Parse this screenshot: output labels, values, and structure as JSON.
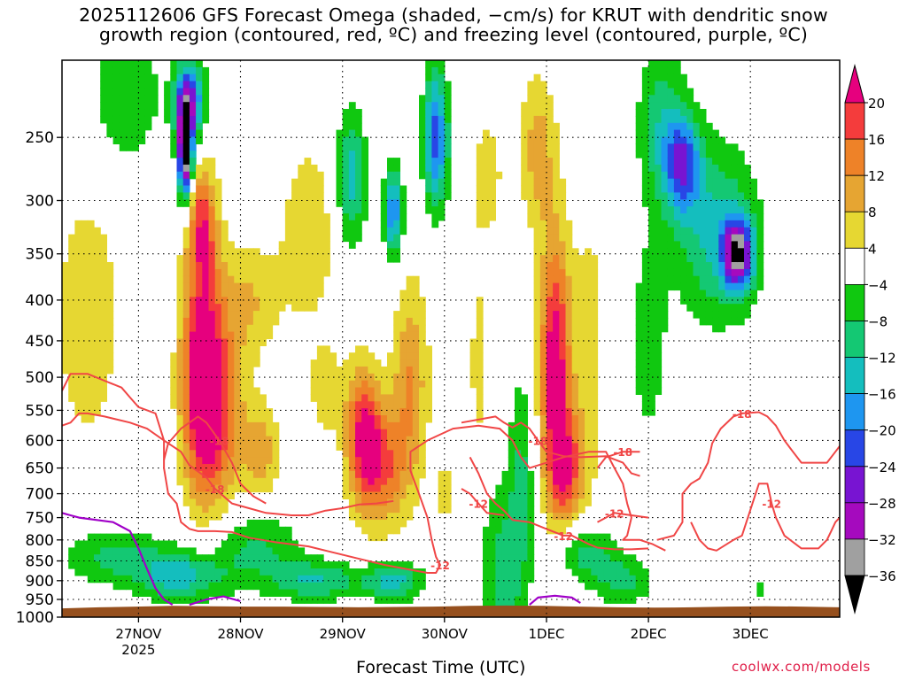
{
  "title": {
    "line1": "2025112606 GFS Forecast Omega (shaded, −cm/s) for KRUT with dendritic snow",
    "line2": "growth region (contoured, red, ºC) and freezing level (contoured, purple, ºC)"
  },
  "xlabel": "Forecast Time (UTC)",
  "credit": "coolwx.com/models",
  "colors": {
    "terrain": "#96501e",
    "dendritic_contour": "#f04646",
    "freezing_contour": "#a000c8",
    "grid": "#000000"
  },
  "chart_data": {
    "type": "heatmap",
    "y_scale": "log-pressure",
    "y_unit": "hPa",
    "ylim": [
      1000,
      200
    ],
    "yticks": [
      250,
      300,
      350,
      400,
      450,
      500,
      550,
      600,
      650,
      700,
      750,
      800,
      850,
      900,
      950,
      1000
    ],
    "x_start": "2025-11-26T06",
    "x_end": "2025-12-03T21",
    "x_unit": "hours",
    "xticks": [
      {
        "t": 18,
        "label": "27NOV",
        "sub": "2025"
      },
      {
        "t": 42,
        "label": "28NOV",
        "sub": ""
      },
      {
        "t": 66,
        "label": "29NOV",
        "sub": ""
      },
      {
        "t": 90,
        "label": "30NOV",
        "sub": ""
      },
      {
        "t": 114,
        "label": "1DEC",
        "sub": ""
      },
      {
        "t": 138,
        "label": "2DEC",
        "sub": ""
      },
      {
        "t": 162,
        "label": "3DEC",
        "sub": ""
      }
    ],
    "grid": true,
    "colorbar": {
      "labels": [
        "20",
        "16",
        "12",
        "8",
        "4",
        "−4",
        "−8",
        "−12",
        "−16",
        "−20",
        "−24",
        "−28",
        "−32",
        "−36"
      ],
      "bins": [
        {
          "lo": 20,
          "hi": 99,
          "color": "#e6007e"
        },
        {
          "lo": 16,
          "hi": 20,
          "color": "#f43c3c"
        },
        {
          "lo": 12,
          "hi": 16,
          "color": "#ee8228"
        },
        {
          "lo": 8,
          "hi": 12,
          "color": "#e6a532"
        },
        {
          "lo": 4,
          "hi": 8,
          "color": "#e6d732"
        },
        {
          "lo": -4,
          "hi": 4,
          "color": "#ffffff"
        },
        {
          "lo": -8,
          "hi": -4,
          "color": "#10c810"
        },
        {
          "lo": -12,
          "hi": -8,
          "color": "#14c873"
        },
        {
          "lo": -16,
          "hi": -12,
          "color": "#14bebe"
        },
        {
          "lo": -20,
          "hi": -16,
          "color": "#1e96f0"
        },
        {
          "lo": -24,
          "hi": -20,
          "color": "#2846e6"
        },
        {
          "lo": -28,
          "hi": -24,
          "color": "#7814d2"
        },
        {
          "lo": -32,
          "hi": -28,
          "color": "#a50abe"
        },
        {
          "lo": -36,
          "hi": -32,
          "color": "#a0a0a0"
        },
        {
          "lo": -99,
          "hi": -36,
          "color": "#000000"
        }
      ]
    },
    "omega_features": [
      {
        "t": 33,
        "p": 500,
        "st": 3.5,
        "sp": 0.24,
        "a": 26
      },
      {
        "t": 33,
        "p": 320,
        "st": 2.5,
        "sp": 0.12,
        "a": 16
      },
      {
        "t": 38,
        "p": 560,
        "st": 4,
        "sp": 0.18,
        "a": 12
      },
      {
        "t": 47,
        "p": 620,
        "st": 3,
        "sp": 0.1,
        "a": 10
      },
      {
        "t": 44,
        "p": 400,
        "st": 5,
        "sp": 0.12,
        "a": 8
      },
      {
        "t": 58,
        "p": 330,
        "st": 5,
        "sp": 0.2,
        "a": 7
      },
      {
        "t": 71,
        "p": 590,
        "st": 3,
        "sp": 0.14,
        "a": 20
      },
      {
        "t": 76,
        "p": 650,
        "st": 4,
        "sp": 0.12,
        "a": 14
      },
      {
        "t": 82,
        "p": 500,
        "st": 3,
        "sp": 0.2,
        "a": 12
      },
      {
        "t": 62,
        "p": 520,
        "st": 3,
        "sp": 0.1,
        "a": 6
      },
      {
        "t": 98,
        "p": 480,
        "st": 1.5,
        "sp": 0.2,
        "a": 6
      },
      {
        "t": 116,
        "p": 480,
        "st": 2.5,
        "sp": 0.26,
        "a": 24
      },
      {
        "t": 119,
        "p": 650,
        "st": 3,
        "sp": 0.12,
        "a": 16
      },
      {
        "t": 112,
        "p": 260,
        "st": 3,
        "sp": 0.16,
        "a": 10
      },
      {
        "t": 124,
        "p": 450,
        "st": 3,
        "sp": 0.3,
        "a": 6
      },
      {
        "t": 6,
        "p": 420,
        "st": 6,
        "sp": 0.28,
        "a": 7
      },
      {
        "t": 100,
        "p": 280,
        "st": 3,
        "sp": 0.15,
        "a": 6
      },
      {
        "t": 168,
        "p": 320,
        "st": 1.5,
        "sp": 0.15,
        "a": 5
      },
      {
        "t": 90,
        "p": 700,
        "st": 2,
        "sp": 0.1,
        "a": 5
      },
      {
        "t": 29,
        "p": 260,
        "st": 1.2,
        "sp": 0.1,
        "a": -40
      },
      {
        "t": 30,
        "p": 225,
        "st": 2.5,
        "sp": 0.08,
        "a": -24
      },
      {
        "t": 68,
        "p": 280,
        "st": 2.5,
        "sp": 0.14,
        "a": -14
      },
      {
        "t": 78,
        "p": 310,
        "st": 1.5,
        "sp": 0.09,
        "a": -20
      },
      {
        "t": 88,
        "p": 250,
        "st": 2,
        "sp": 0.14,
        "a": -22
      },
      {
        "t": 146,
        "p": 270,
        "st": 3,
        "sp": 0.1,
        "a": -20
      },
      {
        "t": 159,
        "p": 350,
        "st": 2.5,
        "sp": 0.07,
        "a": -30
      },
      {
        "t": 154,
        "p": 330,
        "st": 7,
        "sp": 0.18,
        "a": -13
      },
      {
        "t": 141,
        "p": 240,
        "st": 4,
        "sp": 0.16,
        "a": -10
      },
      {
        "t": 15,
        "p": 220,
        "st": 6,
        "sp": 0.15,
        "a": -8
      },
      {
        "t": 12,
        "p": 840,
        "st": 9,
        "sp": 0.06,
        "a": -9
      },
      {
        "t": 28,
        "p": 890,
        "st": 7,
        "sp": 0.05,
        "a": -14
      },
      {
        "t": 45,
        "p": 820,
        "st": 8,
        "sp": 0.08,
        "a": -9
      },
      {
        "t": 60,
        "p": 900,
        "st": 7,
        "sp": 0.04,
        "a": -12
      },
      {
        "t": 78,
        "p": 900,
        "st": 5,
        "sp": 0.04,
        "a": -14
      },
      {
        "t": 104,
        "p": 880,
        "st": 4,
        "sp": 0.18,
        "a": -10
      },
      {
        "t": 108,
        "p": 650,
        "st": 2,
        "sp": 0.2,
        "a": -8
      },
      {
        "t": 123,
        "p": 830,
        "st": 5,
        "sp": 0.06,
        "a": -10
      },
      {
        "t": 132,
        "p": 900,
        "st": 5,
        "sp": 0.05,
        "a": -9
      },
      {
        "t": 138,
        "p": 450,
        "st": 3,
        "sp": 0.2,
        "a": -7
      },
      {
        "t": 164,
        "p": 920,
        "st": 1.5,
        "sp": 0.02,
        "a": -6
      }
    ],
    "dendritic_contours": [
      {
        "label": "-12",
        "points": [
          [
            0,
            520
          ],
          [
            2,
            495
          ],
          [
            6,
            495
          ],
          [
            10,
            505
          ],
          [
            14,
            515
          ],
          [
            16,
            530
          ],
          [
            18,
            545
          ],
          [
            22,
            555
          ],
          [
            24,
            600
          ],
          [
            24,
            650
          ],
          [
            25,
            700
          ],
          [
            27,
            720
          ],
          [
            28,
            760
          ],
          [
            30,
            775
          ],
          [
            32,
            780
          ],
          [
            36,
            780
          ],
          [
            40,
            782
          ],
          [
            44,
            795
          ],
          [
            50,
            805
          ],
          [
            58,
            815
          ],
          [
            64,
            830
          ],
          [
            70,
            845
          ],
          [
            76,
            860
          ],
          [
            82,
            872
          ],
          [
            86,
            880
          ],
          [
            88,
            880
          ],
          [
            89,
            860
          ],
          [
            88,
            840
          ],
          [
            87,
            800
          ],
          [
            86,
            750
          ],
          [
            84,
            700
          ],
          [
            82,
            655
          ],
          [
            82,
            620
          ],
          [
            86,
            600
          ],
          [
            92,
            580
          ],
          [
            98,
            575
          ],
          [
            103,
            580
          ],
          [
            106,
            600
          ],
          [
            108,
            630
          ],
          [
            110,
            650
          ],
          [
            114,
            640
          ],
          [
            118,
            630
          ],
          [
            124,
            620
          ],
          [
            128,
            620
          ],
          [
            130,
            650
          ],
          [
            132,
            680
          ],
          [
            133,
            720
          ],
          [
            134,
            750
          ],
          [
            133,
            790
          ],
          [
            132,
            800
          ],
          [
            136,
            800
          ],
          [
            139,
            810
          ],
          [
            142,
            825
          ]
        ]
      },
      {
        "label": "-18",
        "points": [
          [
            0,
            575
          ],
          [
            2,
            570
          ],
          [
            4,
            555
          ],
          [
            6,
            555
          ],
          [
            10,
            560
          ],
          [
            16,
            570
          ],
          [
            20,
            580
          ],
          [
            24,
            600
          ],
          [
            28,
            620
          ],
          [
            30,
            645
          ],
          [
            34,
            668
          ],
          [
            36,
            690
          ],
          [
            40,
            720
          ],
          [
            44,
            730
          ],
          [
            48,
            740
          ],
          [
            54,
            745
          ],
          [
            58,
            745
          ],
          [
            62,
            735
          ],
          [
            66,
            730
          ],
          [
            70,
            722
          ],
          [
            74,
            720
          ],
          [
            78,
            715
          ]
        ]
      },
      {
        "label": "-18",
        "points": [
          [
            24,
            635
          ],
          [
            25,
            605
          ],
          [
            28,
            580
          ],
          [
            32,
            560
          ],
          [
            34,
            570
          ],
          [
            37,
            600
          ],
          [
            40,
            640
          ],
          [
            42,
            680
          ],
          [
            45,
            705
          ],
          [
            48,
            720
          ]
        ]
      },
      {
        "label": "-18",
        "points": [
          [
            94,
            570
          ],
          [
            98,
            565
          ],
          [
            102,
            560
          ],
          [
            104,
            570
          ],
          [
            106,
            578
          ],
          [
            108,
            570
          ],
          [
            110,
            580
          ],
          [
            112,
            600
          ],
          [
            114,
            620
          ],
          [
            118,
            628
          ],
          [
            122,
            630
          ],
          [
            128,
            628
          ],
          [
            132,
            640
          ],
          [
            134,
            660
          ],
          [
            136,
            665
          ]
        ]
      },
      {
        "label": "-12",
        "points": [
          [
            96,
            630
          ],
          [
            98,
            660
          ],
          [
            100,
            700
          ],
          [
            102,
            720
          ],
          [
            104,
            735
          ],
          [
            106,
            755
          ],
          [
            110,
            760
          ],
          [
            114,
            775
          ],
          [
            118,
            790
          ],
          [
            120,
            790
          ],
          [
            122,
            800
          ],
          [
            124,
            810
          ],
          [
            126,
            818
          ],
          [
            130,
            822
          ],
          [
            134,
            822
          ],
          [
            138,
            820
          ]
        ]
      },
      {
        "label": "-12",
        "points": [
          [
            94,
            690
          ],
          [
            96,
            700
          ],
          [
            98,
            720
          ],
          [
            100,
            740
          ],
          [
            104,
            745
          ]
        ]
      },
      {
        "label": "-12",
        "points": [
          [
            126,
            760
          ],
          [
            128,
            750
          ],
          [
            130,
            740
          ],
          [
            134,
            745
          ],
          [
            138,
            750
          ]
        ]
      },
      {
        "label": "-18",
        "points": [
          [
            126,
            650
          ],
          [
            128,
            630
          ],
          [
            132,
            620
          ],
          [
            136,
            620
          ]
        ]
      },
      {
        "label": "-18",
        "points": [
          [
            140,
            800
          ],
          [
            144,
            790
          ],
          [
            146,
            760
          ],
          [
            146,
            700
          ],
          [
            148,
            680
          ],
          [
            150,
            670
          ],
          [
            152,
            640
          ],
          [
            153,
            605
          ],
          [
            155,
            580
          ],
          [
            158,
            560
          ],
          [
            160,
            555
          ],
          [
            164,
            553
          ],
          [
            166,
            560
          ],
          [
            168,
            575
          ],
          [
            170,
            600
          ],
          [
            172,
            620
          ],
          [
            174,
            640
          ],
          [
            177,
            640
          ],
          [
            180,
            640
          ],
          [
            182,
            620
          ],
          [
            183,
            610
          ]
        ]
      },
      {
        "label": "-12",
        "points": [
          [
            148,
            760
          ],
          [
            150,
            800
          ],
          [
            152,
            820
          ],
          [
            154,
            825
          ],
          [
            158,
            800
          ],
          [
            160,
            790
          ],
          [
            164,
            680
          ],
          [
            166,
            680
          ],
          [
            167,
            720
          ],
          [
            168,
            750
          ],
          [
            170,
            790
          ],
          [
            174,
            820
          ],
          [
            178,
            820
          ],
          [
            180,
            800
          ],
          [
            181,
            780
          ],
          [
            182,
            760
          ],
          [
            183,
            750
          ]
        ]
      }
    ],
    "freezing_contours": [
      {
        "label": "0",
        "points": [
          [
            0,
            740
          ],
          [
            2,
            745
          ],
          [
            4,
            750
          ],
          [
            8,
            755
          ],
          [
            12,
            760
          ],
          [
            16,
            780
          ],
          [
            18,
            820
          ],
          [
            20,
            870
          ],
          [
            22,
            920
          ],
          [
            24,
            950
          ],
          [
            26,
            965
          ]
        ]
      },
      {
        "label": "0",
        "points": [
          [
            30,
            965
          ],
          [
            34,
            950
          ],
          [
            38,
            942
          ],
          [
            42,
            955
          ]
        ]
      },
      {
        "label": "0",
        "points": [
          [
            110,
            965
          ],
          [
            112,
            945
          ],
          [
            116,
            940
          ],
          [
            120,
            945
          ],
          [
            122,
            960
          ]
        ]
      }
    ],
    "terrain": {
      "surface_hPa": [
        975,
        972,
        970,
        968,
        969,
        970,
        970,
        971,
        972,
        971,
        970,
        968,
        967,
        968,
        970,
        972,
        973,
        972,
        970,
        969,
        970,
        972
      ]
    }
  }
}
